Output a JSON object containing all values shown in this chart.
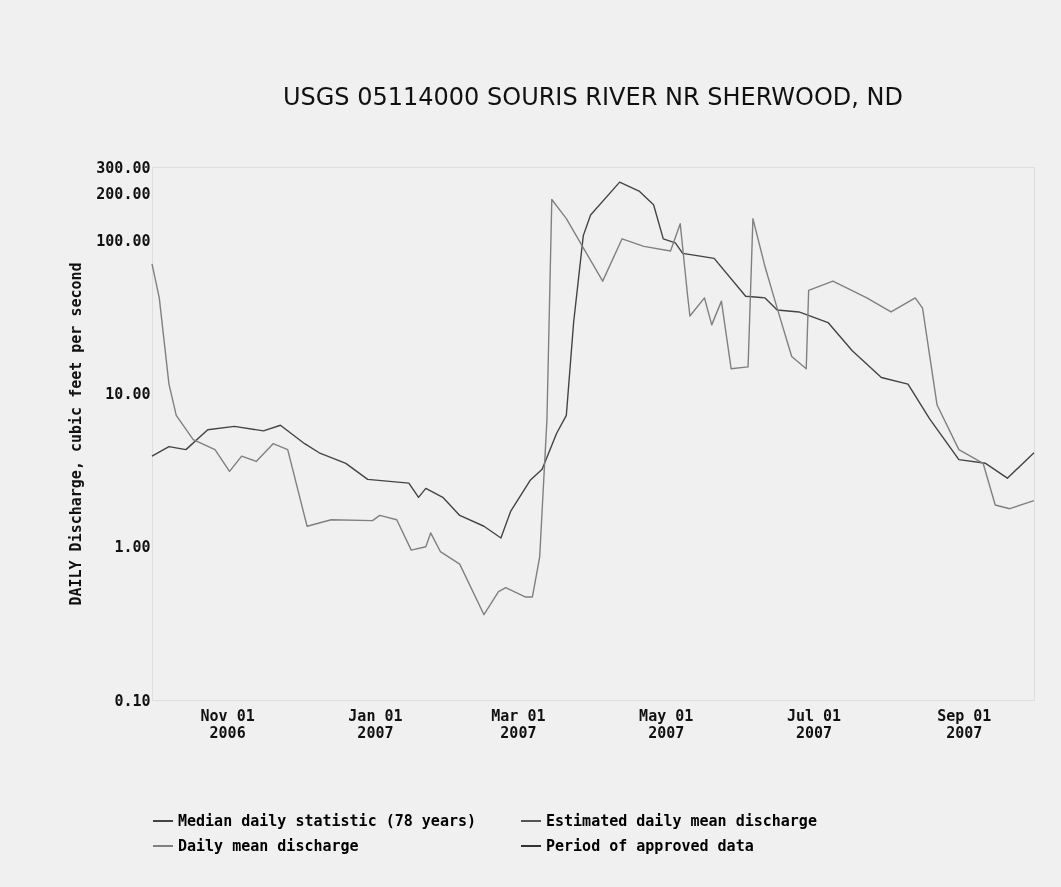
{
  "chart_data": {
    "type": "line",
    "title": "USGS 05114000 SOURIS RIVER NR SHERWOOD, ND",
    "ylabel": "DAILY Discharge, cubic feet per second",
    "log": true,
    "grid": false,
    "legend": "bottom",
    "line_style": "solid",
    "xlim": [
      "2006-10-01",
      "2007-09-30"
    ],
    "xticks": [
      {
        "value": "2006-11-01",
        "label": "Nov 01\n2006"
      },
      {
        "value": "2007-01-01",
        "label": "Jan 01\n2007"
      },
      {
        "value": "2007-03-01",
        "label": "Mar 01\n2007"
      },
      {
        "value": "2007-05-01",
        "label": "May 01\n2007"
      },
      {
        "value": "2007-07-01",
        "label": "Jul 01\n2007"
      },
      {
        "value": "2007-09-01",
        "label": "Sep 01\n2007"
      }
    ],
    "ylim": [
      0.1,
      300
    ],
    "yticks": [
      {
        "value": 0.1,
        "label": "0.10"
      },
      {
        "value": 1,
        "label": "1.00"
      },
      {
        "value": 10,
        "label": "10.00"
      },
      {
        "value": 100,
        "label": "100.00"
      },
      {
        "value": 200,
        "label": "200.00"
      },
      {
        "value": 300,
        "label": "300.00"
      }
    ],
    "series": [
      {
        "name": "Median daily statistic (78 years)",
        "color": "#444444",
        "x": [
          "2006-10-01",
          "2006-10-08",
          "2006-10-15",
          "2006-10-24",
          "2006-11-04",
          "2006-11-16",
          "2006-11-23",
          "2006-12-03",
          "2006-12-09",
          "2006-12-20",
          "2006-12-29",
          "2007-01-15",
          "2007-01-19",
          "2007-01-22",
          "2007-01-29",
          "2007-02-05",
          "2007-02-15",
          "2007-02-22",
          "2007-02-26",
          "2007-03-06",
          "2007-03-11",
          "2007-03-17",
          "2007-03-21",
          "2007-03-24",
          "2007-03-28",
          "2007-03-31",
          "2007-04-12",
          "2007-04-20",
          "2007-04-26",
          "2007-04-30",
          "2007-05-05",
          "2007-05-08",
          "2007-05-21",
          "2007-06-03",
          "2007-06-11",
          "2007-06-16",
          "2007-06-25",
          "2007-07-07",
          "2007-07-17",
          "2007-07-29",
          "2007-08-09",
          "2007-08-18",
          "2007-08-30",
          "2007-09-10",
          "2007-09-19",
          "2007-09-30"
        ],
        "values": [
          3.9,
          4.5,
          4.3,
          5.8,
          6.1,
          5.7,
          6.2,
          4.7,
          4.1,
          3.5,
          2.75,
          2.6,
          2.1,
          2.4,
          2.1,
          1.6,
          1.36,
          1.14,
          1.7,
          2.7,
          3.2,
          5.5,
          7.2,
          29,
          107,
          146,
          239,
          209,
          170,
          102,
          96,
          82,
          76,
          43,
          42,
          35,
          34,
          29,
          19,
          12.7,
          11.5,
          6.8,
          3.7,
          3.5,
          2.8,
          4.1
        ]
      },
      {
        "name": "Estimated daily mean discharge",
        "color": "#555555"
      },
      {
        "name": "Daily mean discharge",
        "color": "#808080",
        "x": [
          "2006-10-01",
          "2006-10-04",
          "2006-10-08",
          "2006-10-11",
          "2006-10-18",
          "2006-10-27",
          "2006-11-02",
          "2006-11-07",
          "2006-11-13",
          "2006-11-20",
          "2006-11-26",
          "2006-12-04",
          "2006-12-14",
          "2006-12-31",
          "2007-01-03",
          "2007-01-10",
          "2007-01-16",
          "2007-01-22",
          "2007-01-24",
          "2007-01-28",
          "2007-02-05",
          "2007-02-15",
          "2007-02-21",
          "2007-02-24",
          "2007-03-04",
          "2007-03-07",
          "2007-03-10",
          "2007-03-13",
          "2007-03-15",
          "2007-03-21",
          "2007-04-05",
          "2007-04-13",
          "2007-04-22",
          "2007-05-03",
          "2007-05-07",
          "2007-05-10",
          "2007-05-11",
          "2007-05-17",
          "2007-05-20",
          "2007-05-24",
          "2007-05-28",
          "2007-06-04",
          "2007-06-06",
          "2007-06-11",
          "2007-06-16",
          "2007-06-22",
          "2007-06-28",
          "2007-06-29",
          "2007-07-09",
          "2007-07-23",
          "2007-08-02",
          "2007-08-12",
          "2007-08-15",
          "2007-08-21",
          "2007-08-30",
          "2007-09-09",
          "2007-09-14",
          "2007-09-20",
          "2007-09-30"
        ],
        "values": [
          70,
          42,
          11.5,
          7.2,
          5.0,
          4.3,
          3.1,
          3.9,
          3.6,
          4.7,
          4.3,
          1.36,
          1.5,
          1.48,
          1.6,
          1.5,
          0.95,
          1.0,
          1.23,
          0.93,
          0.77,
          0.36,
          0.51,
          0.54,
          0.47,
          0.47,
          0.86,
          6.8,
          184,
          138,
          54,
          102,
          91,
          85,
          128,
          44,
          32,
          42,
          28,
          40,
          14.5,
          14.9,
          138,
          67,
          36,
          17.4,
          14.5,
          47,
          54,
          42,
          34,
          42,
          36,
          8.4,
          4.3,
          3.5,
          1.87,
          1.77,
          2.0
        ]
      },
      {
        "name": "Period of approved data",
        "color": "#333333"
      }
    ]
  }
}
